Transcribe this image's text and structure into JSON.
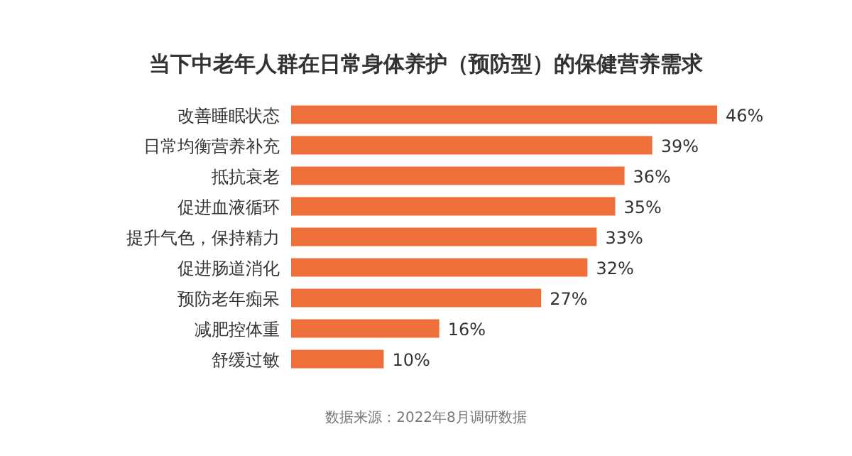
{
  "chart_data": {
    "type": "bar",
    "orientation": "horizontal",
    "title": "当下中老年人群在日常身体养护（预防型）的保健营养需求",
    "categories": [
      "改善睡眠状态",
      "日常均衡营养补充",
      "抵抗衰老",
      "促进血液循环",
      "提升气色，保持精力",
      "促进肠道消化",
      "预防老年痴呆",
      "减肥控体重",
      "舒缓过敏"
    ],
    "values": [
      46,
      39,
      36,
      35,
      33,
      32,
      27,
      16,
      10
    ],
    "value_labels": [
      "46%",
      "39%",
      "36%",
      "35%",
      "33%",
      "32%",
      "27%",
      "16%",
      "10%"
    ],
    "color": "#ef6f3a",
    "annotations": [
      "数据来源：2022年8月调研数据"
    ]
  }
}
